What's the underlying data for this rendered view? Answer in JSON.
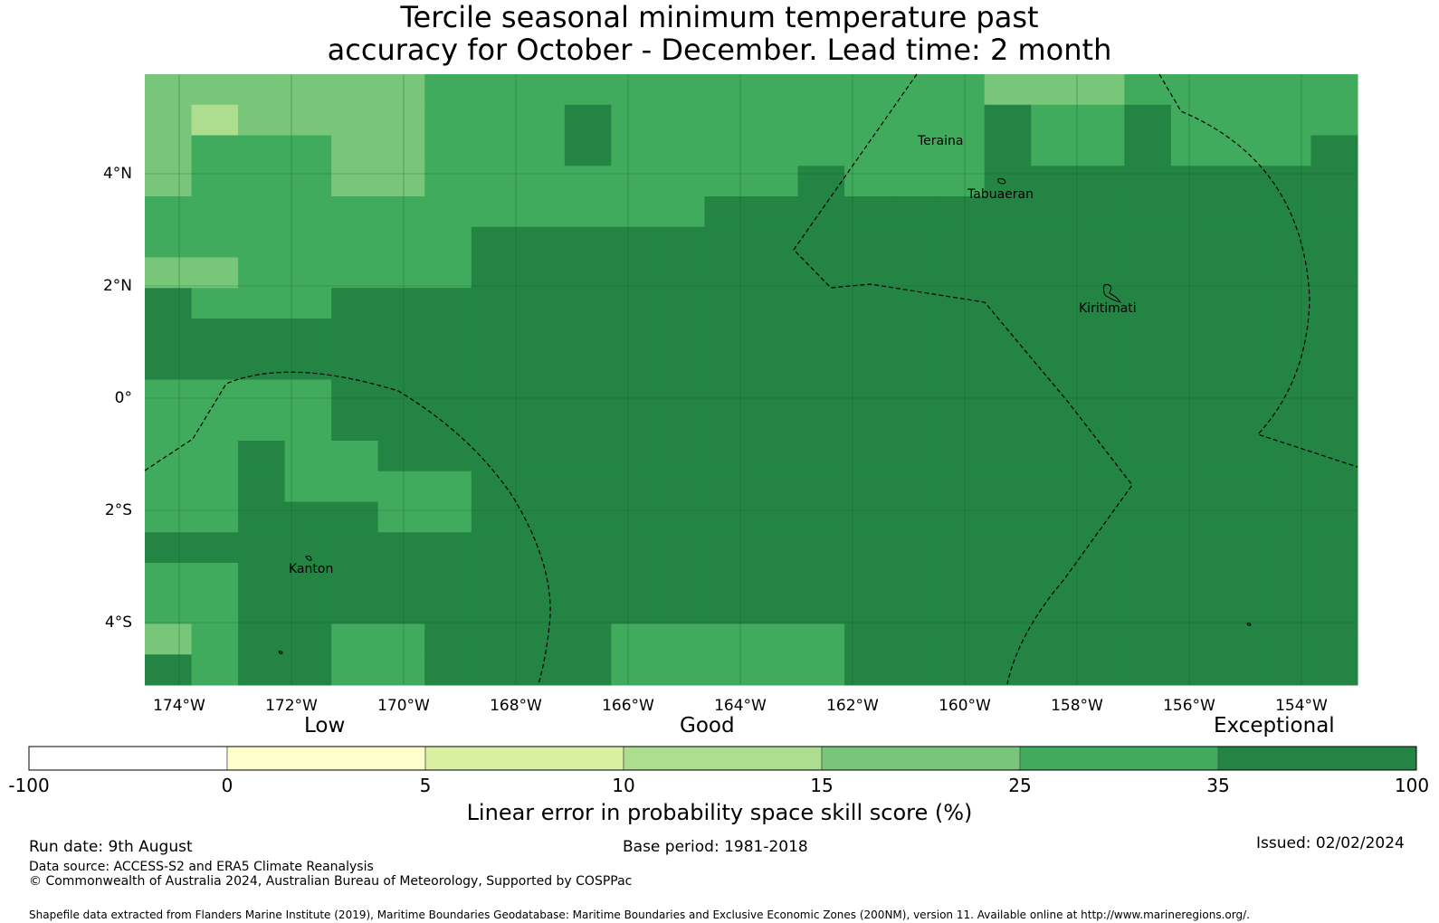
{
  "title": {
    "line1": "Tercile seasonal minimum temperature past",
    "line2": "accuracy for October - December. Lead time: 2 month"
  },
  "map": {
    "lat_labels": [
      "4°N",
      "2°N",
      "0°",
      "2°S",
      "4°S"
    ],
    "lon_labels": [
      "174°W",
      "172°W",
      "170°W",
      "168°W",
      "166°W",
      "164°W",
      "162°W",
      "160°W",
      "158°W",
      "156°W",
      "154°W"
    ],
    "places": [
      "Teraina",
      "Tabuaeran",
      "Kiritimati",
      "Kanton"
    ]
  },
  "colorbar": {
    "categories": [
      "Low",
      "Good",
      "Exceptional"
    ],
    "ticks": [
      "-100",
      "0",
      "5",
      "10",
      "15",
      "25",
      "35",
      "100"
    ],
    "colors": [
      "#ffffff",
      "#ffffcc",
      "#d9f0a3",
      "#addd8e",
      "#78c679",
      "#41ab5d",
      "#238443"
    ],
    "label": "Linear error in probability space skill score (%)"
  },
  "footer": {
    "run_date": "Run date: 9th August",
    "base_period": "Base period: 1981-2018",
    "issued": "Issued: 02/02/2024",
    "data_source": "Data source: ACCESS-S2 and ERA5 Climate Reanalysis",
    "copyright": "© Commonwealth of Australia 2024, Australian Bureau of Meteorology, Supported by COSPPac",
    "shapefile": "Shapefile data extracted from Flanders Marine Institute (2019), Maritime Boundaries Geodatabase: Maritime Boundaries and Exclusive Economic Zones (200NM), version 11. Available online at http://www.marineregions.org/."
  }
}
